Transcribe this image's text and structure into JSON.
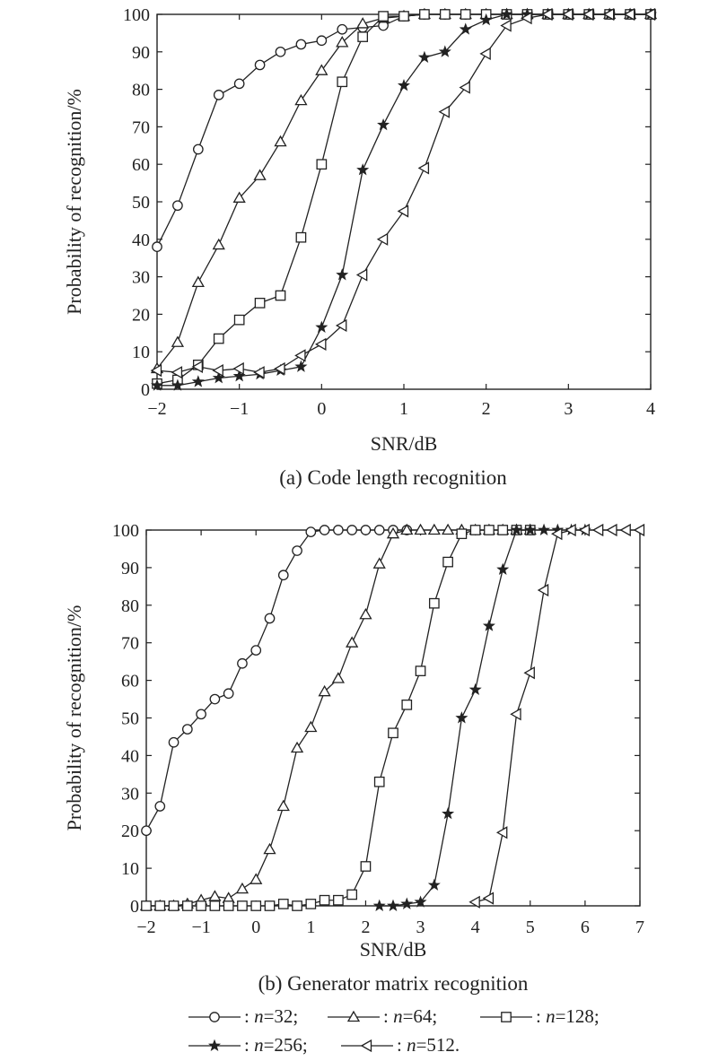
{
  "chart_data": [
    {
      "type": "line",
      "title": "(a) Code length recognition",
      "xlabel": "SNR/dB",
      "ylabel": "Probability of recognition/%",
      "xlim": [
        -2,
        4
      ],
      "ylim": [
        0,
        100
      ],
      "xticks": [
        -2,
        -1,
        0,
        1,
        2,
        3,
        4
      ],
      "yticks": [
        0,
        10,
        20,
        30,
        40,
        50,
        60,
        70,
        80,
        90,
        100
      ],
      "grid": false,
      "series": [
        {
          "marker": "circle",
          "points": [
            [
              -2,
              38
            ],
            [
              -1.75,
              49
            ],
            [
              -1.5,
              64
            ],
            [
              -1.25,
              78.5
            ],
            [
              -1,
              81.5
            ],
            [
              -0.75,
              86.5
            ],
            [
              -0.5,
              90
            ],
            [
              -0.25,
              92
            ],
            [
              0,
              93
            ],
            [
              0.25,
              96
            ],
            [
              0.5,
              96.5
            ],
            [
              0.75,
              97
            ],
            [
              1,
              99.5
            ],
            [
              1.25,
              100
            ],
            [
              1.5,
              100
            ],
            [
              1.75,
              100
            ],
            [
              2,
              100
            ],
            [
              2.25,
              100
            ],
            [
              2.5,
              100
            ],
            [
              2.75,
              100
            ],
            [
              3,
              100
            ],
            [
              3.25,
              100
            ],
            [
              3.5,
              100
            ],
            [
              3.75,
              100
            ],
            [
              4,
              100
            ]
          ]
        },
        {
          "marker": "triangle-up",
          "points": [
            [
              -2,
              5.5
            ],
            [
              -1.75,
              12.5
            ],
            [
              -1.5,
              28.5
            ],
            [
              -1.25,
              38.5
            ],
            [
              -1,
              51
            ],
            [
              -0.75,
              57
            ],
            [
              -0.5,
              66
            ],
            [
              -0.25,
              77
            ],
            [
              0,
              85
            ],
            [
              0.25,
              92.5
            ],
            [
              0.5,
              97.5
            ],
            [
              0.75,
              99
            ],
            [
              1,
              99.5
            ],
            [
              1.25,
              100
            ],
            [
              1.5,
              100
            ],
            [
              1.75,
              100
            ],
            [
              2,
              100
            ],
            [
              2.25,
              100
            ],
            [
              2.5,
              100
            ],
            [
              2.75,
              100
            ],
            [
              3,
              100
            ],
            [
              3.25,
              100
            ],
            [
              3.5,
              100
            ],
            [
              3.75,
              100
            ],
            [
              4,
              100
            ]
          ]
        },
        {
          "marker": "square",
          "points": [
            [
              -2,
              1.5
            ],
            [
              -1.75,
              2.5
            ],
            [
              -1.5,
              6.5
            ],
            [
              -1.25,
              13.5
            ],
            [
              -1,
              18.5
            ],
            [
              -0.75,
              23
            ],
            [
              -0.5,
              25
            ],
            [
              -0.25,
              40.5
            ],
            [
              0,
              60
            ],
            [
              0.25,
              82
            ],
            [
              0.5,
              94
            ],
            [
              0.75,
              99.5
            ],
            [
              1,
              99.5
            ],
            [
              1.25,
              100
            ],
            [
              1.5,
              100
            ],
            [
              1.75,
              100
            ],
            [
              2,
              100
            ],
            [
              2.25,
              100
            ],
            [
              2.5,
              100
            ],
            [
              2.75,
              100
            ],
            [
              3,
              100
            ],
            [
              3.25,
              100
            ],
            [
              3.5,
              100
            ],
            [
              3.75,
              100
            ],
            [
              4,
              100
            ]
          ]
        },
        {
          "marker": "star",
          "points": [
            [
              -2,
              1
            ],
            [
              -1.75,
              1
            ],
            [
              -1.5,
              2
            ],
            [
              -1.25,
              3
            ],
            [
              -1,
              3.5
            ],
            [
              -0.75,
              4
            ],
            [
              -0.5,
              5
            ],
            [
              -0.25,
              6
            ],
            [
              0,
              16.5
            ],
            [
              0.25,
              30.5
            ],
            [
              0.5,
              58.5
            ],
            [
              0.75,
              70.5
            ],
            [
              1,
              81
            ],
            [
              1.25,
              88.5
            ],
            [
              1.5,
              90
            ],
            [
              1.75,
              96
            ],
            [
              2,
              98.5
            ],
            [
              2.25,
              100
            ],
            [
              2.5,
              100
            ],
            [
              2.75,
              100
            ],
            [
              3,
              100
            ],
            [
              3.25,
              100
            ],
            [
              3.5,
              100
            ],
            [
              3.75,
              100
            ],
            [
              4,
              100
            ]
          ]
        },
        {
          "marker": "triangle-left",
          "points": [
            [
              -2,
              5
            ],
            [
              -1.75,
              4.5
            ],
            [
              -1.5,
              6
            ],
            [
              -1.25,
              5
            ],
            [
              -1,
              5.5
            ],
            [
              -0.75,
              4.5
            ],
            [
              -0.5,
              5.5
            ],
            [
              -0.25,
              9
            ],
            [
              0,
              12
            ],
            [
              0.25,
              17
            ],
            [
              0.5,
              30.5
            ],
            [
              0.75,
              40
            ],
            [
              1,
              47.5
            ],
            [
              1.25,
              59
            ],
            [
              1.5,
              74
            ],
            [
              1.75,
              80.5
            ],
            [
              2,
              89.5
            ],
            [
              2.25,
              97
            ],
            [
              2.5,
              99
            ],
            [
              2.75,
              100
            ],
            [
              3,
              100
            ],
            [
              3.25,
              100
            ],
            [
              3.5,
              100
            ],
            [
              3.75,
              100
            ],
            [
              4,
              100
            ]
          ]
        }
      ]
    },
    {
      "type": "line",
      "title": "(b) Generator matrix recognition",
      "xlabel": "SNR/dB",
      "ylabel": "Probability of recognition/%",
      "xlim": [
        -2,
        7
      ],
      "ylim": [
        0,
        100
      ],
      "xticks": [
        -2,
        -1,
        0,
        1,
        2,
        3,
        4,
        5,
        6,
        7
      ],
      "yticks": [
        0,
        10,
        20,
        30,
        40,
        50,
        60,
        70,
        80,
        90,
        100
      ],
      "grid": false,
      "series": [
        {
          "marker": "circle",
          "points": [
            [
              -2,
              20
            ],
            [
              -1.75,
              26.5
            ],
            [
              -1.5,
              43.5
            ],
            [
              -1.25,
              47
            ],
            [
              -1,
              51
            ],
            [
              -0.75,
              55
            ],
            [
              -0.5,
              56.5
            ],
            [
              -0.25,
              64.5
            ],
            [
              0,
              68
            ],
            [
              0.25,
              76.5
            ],
            [
              0.5,
              88
            ],
            [
              0.75,
              94.5
            ],
            [
              1,
              99.5
            ],
            [
              1.25,
              100
            ],
            [
              1.5,
              100
            ],
            [
              1.75,
              100
            ],
            [
              2,
              100
            ],
            [
              2.25,
              100
            ],
            [
              2.5,
              100
            ],
            [
              2.75,
              100
            ]
          ]
        },
        {
          "marker": "triangle-up",
          "points": [
            [
              -2,
              0
            ],
            [
              -1.75,
              0
            ],
            [
              -1.5,
              0
            ],
            [
              -1.25,
              0.5
            ],
            [
              -1,
              1.5
            ],
            [
              -0.75,
              2.5
            ],
            [
              -0.5,
              2
            ],
            [
              -0.25,
              4.5
            ],
            [
              0,
              7
            ],
            [
              0.25,
              15
            ],
            [
              0.5,
              26.5
            ],
            [
              0.75,
              42
            ],
            [
              1,
              47.5
            ],
            [
              1.25,
              57
            ],
            [
              1.5,
              60.5
            ],
            [
              1.75,
              70
            ],
            [
              2,
              77.5
            ],
            [
              2.25,
              91
            ],
            [
              2.5,
              99
            ],
            [
              2.75,
              100
            ],
            [
              3,
              100
            ],
            [
              3.25,
              100
            ],
            [
              3.5,
              100
            ],
            [
              3.75,
              100
            ],
            [
              4,
              100
            ],
            [
              4.25,
              100
            ],
            [
              4.5,
              100
            ],
            [
              4.75,
              100
            ],
            [
              5,
              100
            ]
          ]
        },
        {
          "marker": "square",
          "points": [
            [
              -2,
              0
            ],
            [
              -1.75,
              0
            ],
            [
              -1.5,
              0
            ],
            [
              -1.25,
              0
            ],
            [
              -1,
              0
            ],
            [
              -0.75,
              0
            ],
            [
              -0.5,
              0
            ],
            [
              -0.25,
              0
            ],
            [
              0,
              0
            ],
            [
              0.25,
              0
            ],
            [
              0.5,
              0.5
            ],
            [
              0.75,
              0
            ],
            [
              1,
              0.5
            ],
            [
              1.25,
              1.5
            ],
            [
              1.5,
              1.5
            ],
            [
              1.75,
              3
            ],
            [
              2,
              10.5
            ],
            [
              2.25,
              33
            ],
            [
              2.5,
              46
            ],
            [
              2.75,
              53.5
            ],
            [
              3,
              62.5
            ],
            [
              3.25,
              80.5
            ],
            [
              3.5,
              91.5
            ],
            [
              3.75,
              99
            ],
            [
              4,
              100
            ],
            [
              4.25,
              100
            ],
            [
              4.5,
              100
            ],
            [
              4.75,
              100
            ],
            [
              5,
              100
            ]
          ]
        },
        {
          "marker": "star",
          "points": [
            [
              2.25,
              0
            ],
            [
              2.5,
              0
            ],
            [
              2.75,
              0.5
            ],
            [
              3,
              1
            ],
            [
              3.25,
              5.5
            ],
            [
              3.5,
              24.5
            ],
            [
              3.75,
              50
            ],
            [
              4,
              57.5
            ],
            [
              4.25,
              74.5
            ],
            [
              4.5,
              89.5
            ],
            [
              4.75,
              100
            ],
            [
              5,
              100
            ],
            [
              5.25,
              100
            ],
            [
              5.5,
              100
            ],
            [
              5.75,
              100
            ],
            [
              6,
              100
            ]
          ]
        },
        {
          "marker": "triangle-left",
          "points": [
            [
              4,
              1
            ],
            [
              4.25,
              2
            ],
            [
              4.5,
              19.5
            ],
            [
              4.75,
              51
            ],
            [
              5,
              62
            ],
            [
              5.25,
              84
            ],
            [
              5.5,
              99
            ],
            [
              5.75,
              100
            ],
            [
              6,
              100
            ],
            [
              6.25,
              100
            ],
            [
              6.5,
              100
            ],
            [
              6.75,
              100
            ],
            [
              7,
              100
            ]
          ]
        }
      ]
    }
  ],
  "legend": {
    "entries": [
      {
        "marker": "circle",
        "prefix": ": ",
        "var": "n",
        "rest": "=32;"
      },
      {
        "marker": "triangle-up",
        "prefix": ": ",
        "var": "n",
        "rest": "=64;"
      },
      {
        "marker": "square",
        "prefix": ": ",
        "var": "n",
        "rest": "=128;"
      },
      {
        "marker": "star",
        "prefix": ": ",
        "var": "n",
        "rest": "=256;"
      },
      {
        "marker": "triangle-left",
        "prefix": ": ",
        "var": "n",
        "rest": "=512."
      }
    ]
  }
}
